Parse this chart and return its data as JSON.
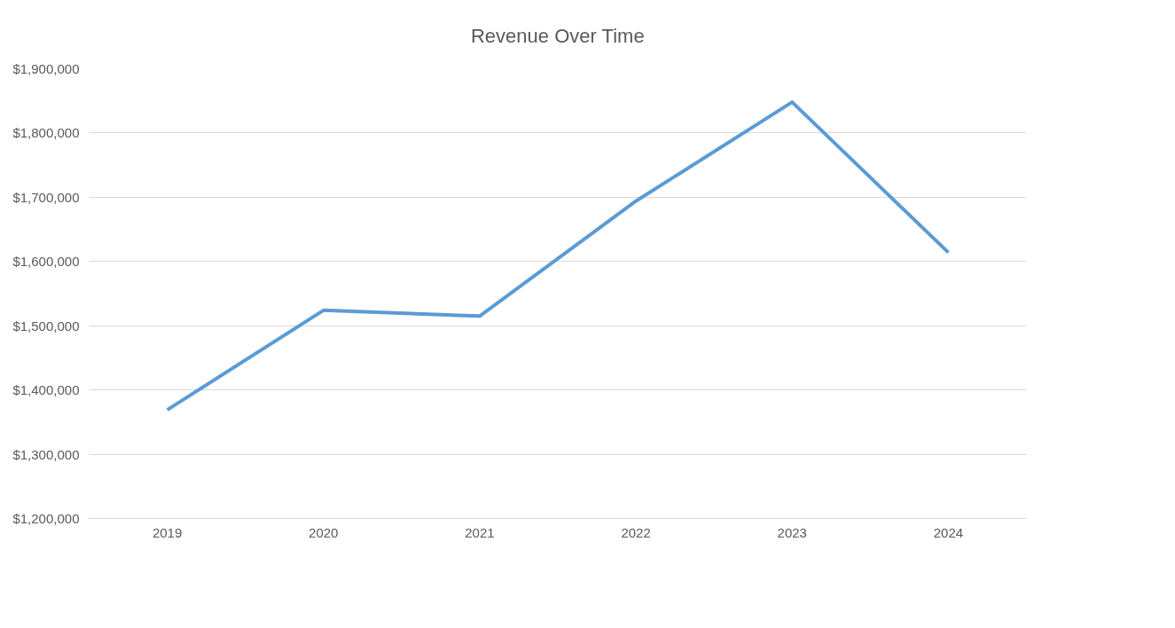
{
  "chart_data": {
    "type": "line",
    "title": "Revenue Over Time",
    "categories": [
      "2019",
      "2020",
      "2021",
      "2022",
      "2023",
      "2024"
    ],
    "series": [
      {
        "color": "#5b9bd5",
        "values": [
          1369000,
          1524000,
          1515000,
          1694000,
          1848000,
          1614000
        ]
      }
    ],
    "ylim": [
      1200000,
      1900000
    ],
    "yticks": [
      {
        "value": 1200000,
        "label": "$1,200,000"
      },
      {
        "value": 1300000,
        "label": "$1,300,000"
      },
      {
        "value": 1400000,
        "label": "$1,400,000"
      },
      {
        "value": 1500000,
        "label": "$1,500,000"
      },
      {
        "value": 1600000,
        "label": "$1,600,000"
      },
      {
        "value": 1700000,
        "label": "$1,700,000"
      },
      {
        "value": 1800000,
        "label": "$1,800,000"
      },
      {
        "value": 1900000,
        "label": "$1,900,000"
      }
    ],
    "grid": "y",
    "marker": "none",
    "line_style": "solid"
  }
}
